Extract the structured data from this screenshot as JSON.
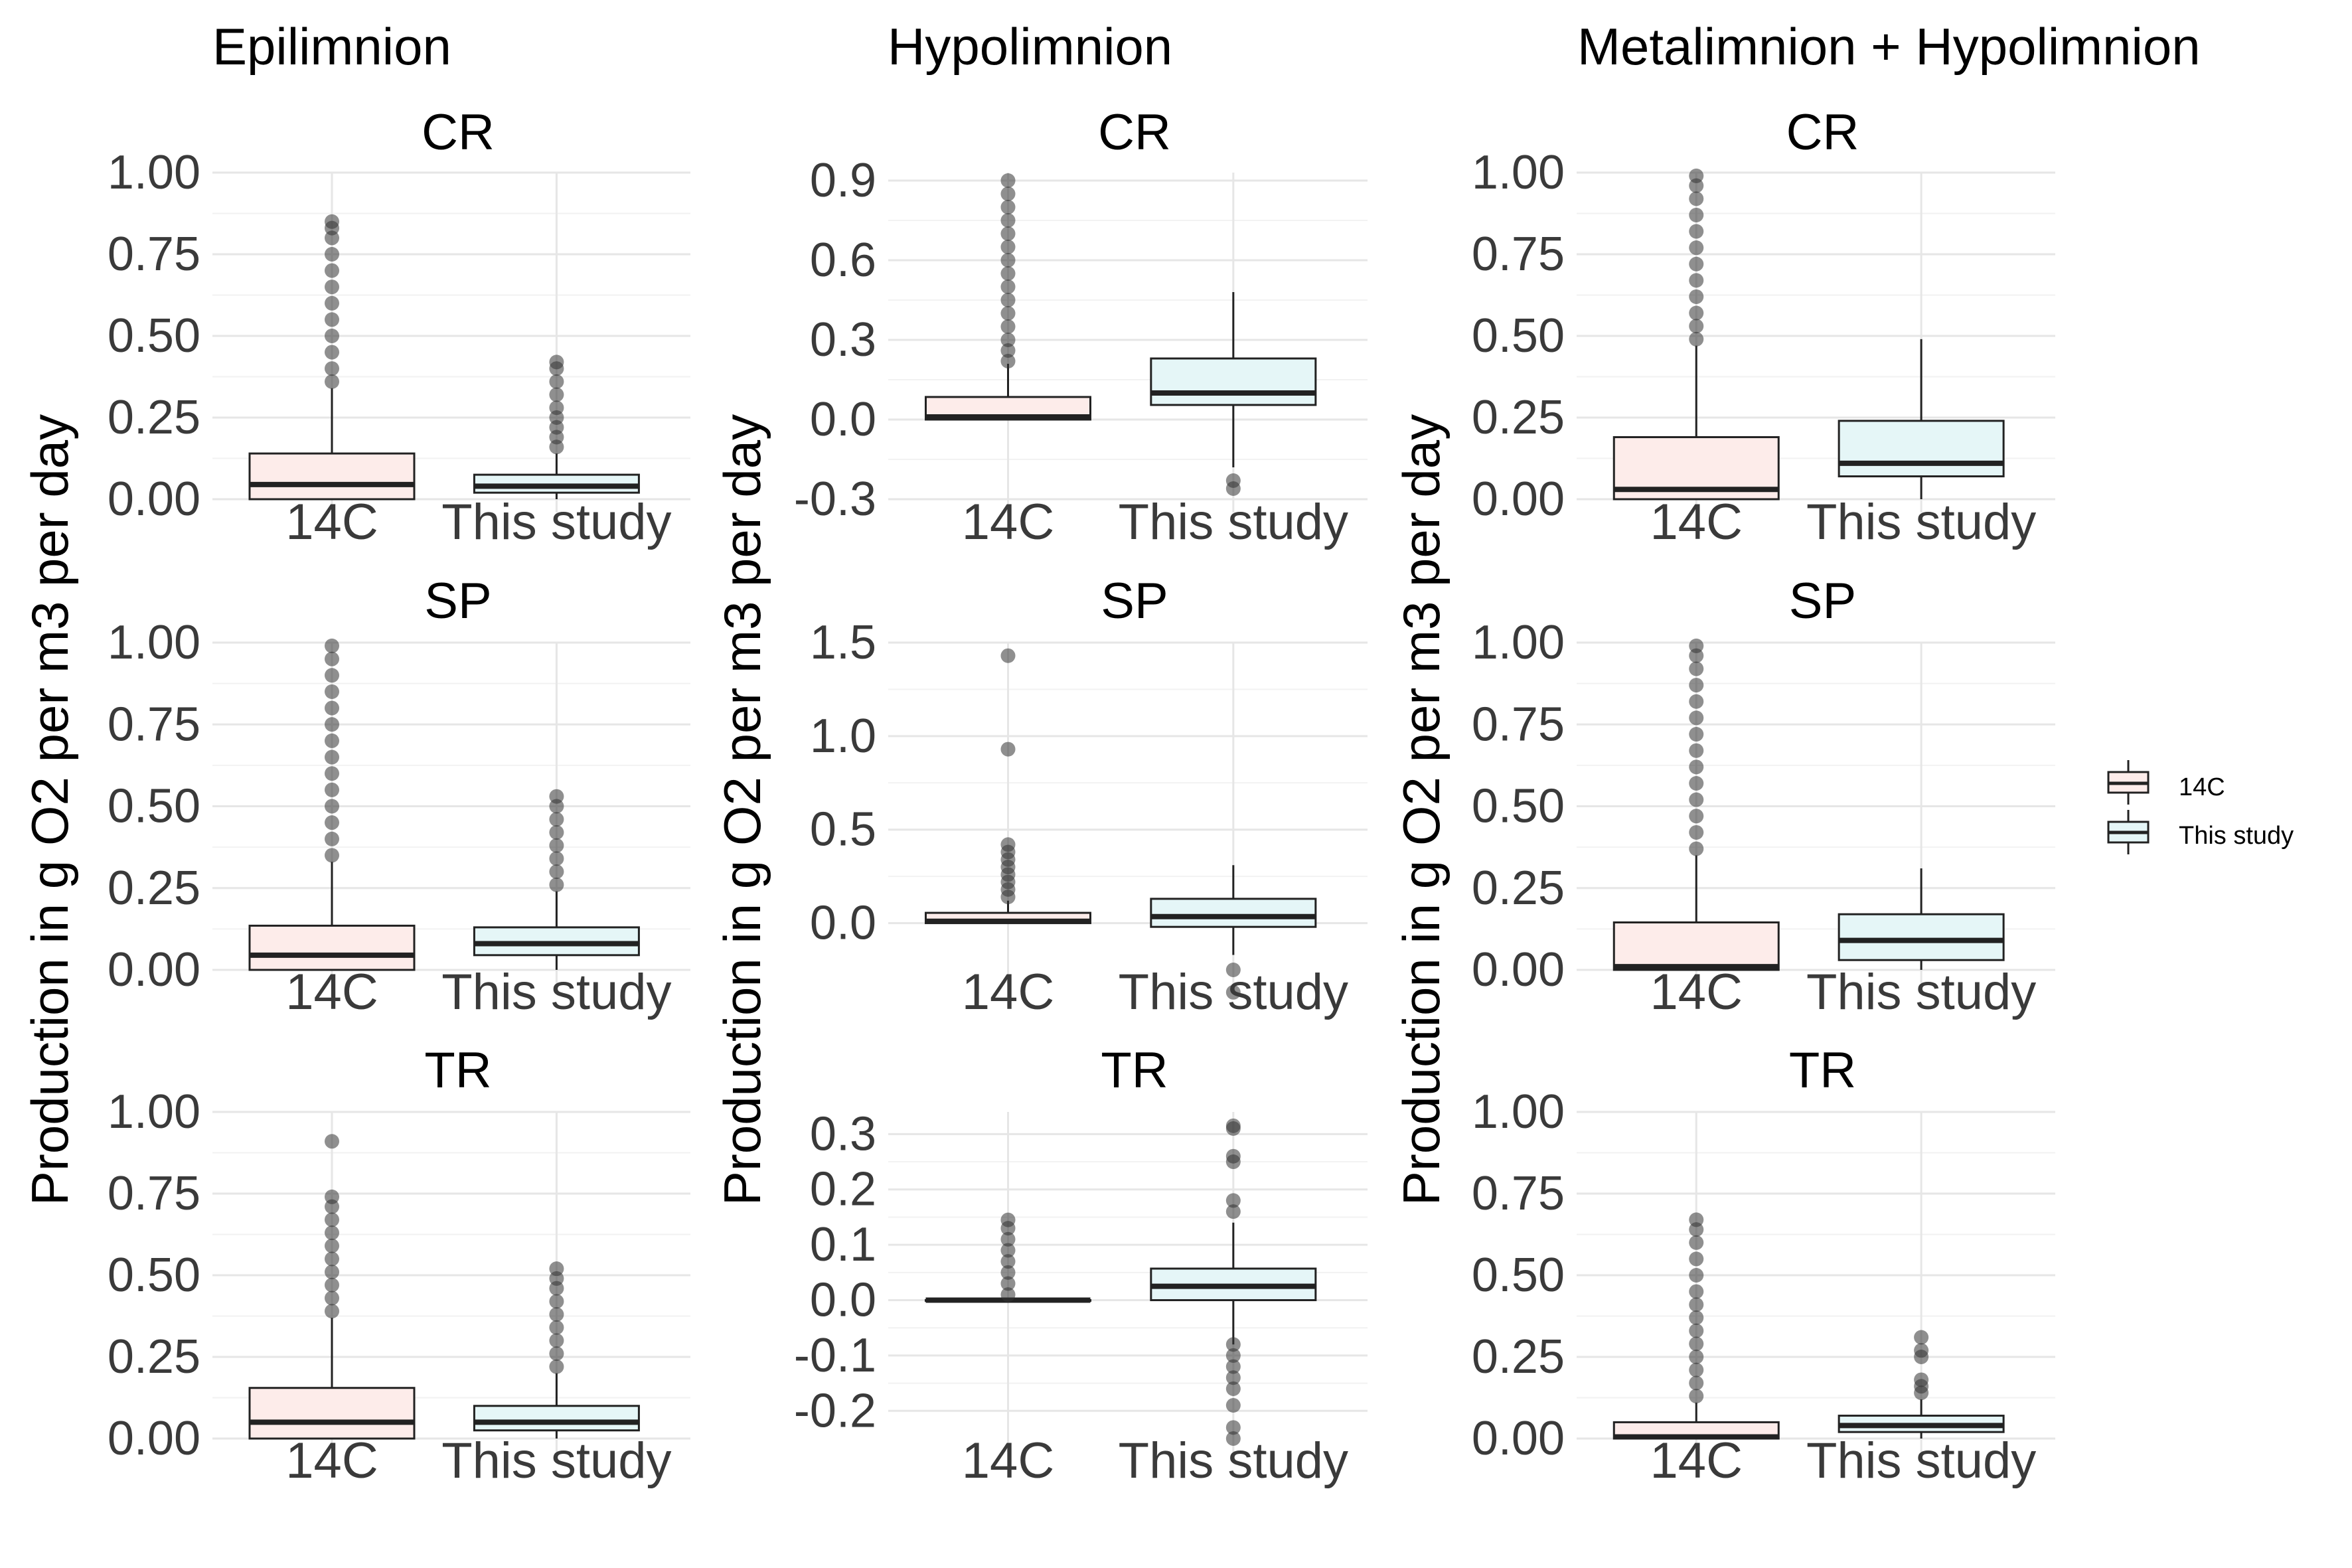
{
  "column_titles": [
    "Epilimnion",
    "Hypolimnion",
    "Metalimnion + Hypolimnion"
  ],
  "ylabel": "Production in g O2 per m3 per day",
  "legend": {
    "entries": [
      {
        "label": "14C",
        "fill": "#fdecea"
      },
      {
        "label": "This study",
        "fill": "#e5f6f7"
      }
    ]
  },
  "colors": {
    "box_14C": "#fdecea",
    "box_this_study": "#e5f6f7",
    "outline": "#222222",
    "grid_major": "#e6e6e6",
    "grid_minor": "#f2f2f2",
    "outlier": "#333333"
  },
  "chart_data": [
    {
      "type": "box",
      "column": "Epilimnion",
      "title": "CR",
      "ylim": [
        0,
        1.0
      ],
      "yticks": [
        0,
        0.25,
        0.5,
        0.75,
        1.0
      ],
      "ytick_labels": [
        "0.00",
        "0.25",
        "0.50",
        "0.75",
        "1.00"
      ],
      "categories": [
        "14C",
        "This study"
      ],
      "boxes": [
        {
          "q1": 0.0,
          "median": 0.045,
          "q3": 0.14,
          "whisker_low": 0.0,
          "whisker_high": 0.34,
          "outliers": [
            0.36,
            0.4,
            0.45,
            0.5,
            0.55,
            0.6,
            0.65,
            0.7,
            0.75,
            0.8,
            0.83,
            0.85
          ]
        },
        {
          "q1": 0.02,
          "median": 0.04,
          "q3": 0.075,
          "whisker_low": 0.0,
          "whisker_high": 0.14,
          "outliers": [
            0.16,
            0.19,
            0.22,
            0.25,
            0.28,
            0.32,
            0.36,
            0.4,
            0.42
          ]
        }
      ]
    },
    {
      "type": "box",
      "column": "Hypolimnion",
      "title": "CR",
      "ylim": [
        -0.3,
        0.93
      ],
      "yticks": [
        -0.3,
        0,
        0.3,
        0.6,
        0.9
      ],
      "ytick_labels": [
        "-0.3",
        "0.0",
        "0.3",
        "0.6",
        "0.9"
      ],
      "categories": [
        "14C",
        "This study"
      ],
      "boxes": [
        {
          "q1": 0.0,
          "median": 0.01,
          "q3": 0.085,
          "whisker_low": 0.0,
          "whisker_high": 0.21,
          "outliers": [
            0.22,
            0.26,
            0.3,
            0.35,
            0.4,
            0.45,
            0.5,
            0.55,
            0.6,
            0.65,
            0.7,
            0.75,
            0.8,
            0.85,
            0.9
          ]
        },
        {
          "q1": 0.055,
          "median": 0.1,
          "q3": 0.23,
          "whisker_low": -0.18,
          "whisker_high": 0.48,
          "outliers": [
            -0.23,
            -0.26
          ]
        }
      ]
    },
    {
      "type": "box",
      "column": "Metalimnion + Hypolimnion",
      "title": "CR",
      "ylim": [
        0,
        1.0
      ],
      "yticks": [
        0,
        0.25,
        0.5,
        0.75,
        1.0
      ],
      "ytick_labels": [
        "0.00",
        "0.25",
        "0.50",
        "0.75",
        "1.00"
      ],
      "categories": [
        "14C",
        "This study"
      ],
      "boxes": [
        {
          "q1": 0.0,
          "median": 0.03,
          "q3": 0.19,
          "whisker_low": 0.0,
          "whisker_high": 0.47,
          "outliers": [
            0.49,
            0.53,
            0.57,
            0.62,
            0.67,
            0.72,
            0.77,
            0.82,
            0.87,
            0.92,
            0.96,
            0.99
          ]
        },
        {
          "q1": 0.07,
          "median": 0.11,
          "q3": 0.24,
          "whisker_low": 0.0,
          "whisker_high": 0.49,
          "outliers": []
        }
      ]
    },
    {
      "type": "box",
      "column": "Epilimnion",
      "title": "SP",
      "ylim": [
        0,
        1.0
      ],
      "yticks": [
        0,
        0.25,
        0.5,
        0.75,
        1.0
      ],
      "ytick_labels": [
        "0.00",
        "0.25",
        "0.50",
        "0.75",
        "1.00"
      ],
      "categories": [
        "14C",
        "This study"
      ],
      "boxes": [
        {
          "q1": 0.0,
          "median": 0.045,
          "q3": 0.135,
          "whisker_low": 0.0,
          "whisker_high": 0.33,
          "outliers": [
            0.35,
            0.4,
            0.45,
            0.5,
            0.55,
            0.6,
            0.65,
            0.7,
            0.75,
            0.8,
            0.85,
            0.9,
            0.95,
            0.99
          ]
        },
        {
          "q1": 0.045,
          "median": 0.08,
          "q3": 0.13,
          "whisker_low": 0.0,
          "whisker_high": 0.24,
          "outliers": [
            0.26,
            0.3,
            0.34,
            0.38,
            0.42,
            0.46,
            0.5,
            0.53
          ]
        }
      ]
    },
    {
      "type": "box",
      "column": "Hypolimnion",
      "title": "SP",
      "ylim": [
        -0.25,
        1.5
      ],
      "yticks": [
        0,
        0.5,
        1.0,
        1.5
      ],
      "ytick_labels": [
        "0.0",
        "0.5",
        "1.0",
        "1.5"
      ],
      "categories": [
        "14C",
        "This study"
      ],
      "boxes": [
        {
          "q1": 0.0,
          "median": 0.01,
          "q3": 0.055,
          "whisker_low": 0.0,
          "whisker_high": 0.12,
          "outliers": [
            0.14,
            0.18,
            0.22,
            0.26,
            0.3,
            0.34,
            0.38,
            0.42,
            0.93,
            1.43
          ]
        },
        {
          "q1": -0.02,
          "median": 0.035,
          "q3": 0.13,
          "whisker_low": -0.17,
          "whisker_high": 0.31,
          "outliers": [
            -0.25,
            -0.37
          ]
        }
      ]
    },
    {
      "type": "box",
      "column": "Metalimnion + Hypolimnion",
      "title": "SP",
      "ylim": [
        0,
        1.0
      ],
      "yticks": [
        0,
        0.25,
        0.5,
        0.75,
        1.0
      ],
      "ytick_labels": [
        "0.00",
        "0.25",
        "0.50",
        "0.75",
        "1.00"
      ],
      "categories": [
        "14C",
        "This study"
      ],
      "boxes": [
        {
          "q1": 0.0,
          "median": 0.01,
          "q3": 0.145,
          "whisker_low": 0.0,
          "whisker_high": 0.35,
          "outliers": [
            0.37,
            0.42,
            0.47,
            0.52,
            0.57,
            0.62,
            0.67,
            0.72,
            0.77,
            0.82,
            0.87,
            0.92,
            0.96,
            0.99
          ]
        },
        {
          "q1": 0.03,
          "median": 0.09,
          "q3": 0.17,
          "whisker_low": 0.0,
          "whisker_high": 0.31,
          "outliers": []
        }
      ]
    },
    {
      "type": "box",
      "column": "Epilimnion",
      "title": "TR",
      "ylim": [
        0,
        1.0
      ],
      "yticks": [
        0,
        0.25,
        0.5,
        0.75,
        1.0
      ],
      "ytick_labels": [
        "0.00",
        "0.25",
        "0.50",
        "0.75",
        "1.00"
      ],
      "categories": [
        "14C",
        "This study"
      ],
      "boxes": [
        {
          "q1": 0.0,
          "median": 0.05,
          "q3": 0.155,
          "whisker_low": 0.0,
          "whisker_high": 0.37,
          "outliers": [
            0.39,
            0.43,
            0.47,
            0.51,
            0.55,
            0.59,
            0.63,
            0.67,
            0.71,
            0.74,
            0.91
          ]
        },
        {
          "q1": 0.025,
          "median": 0.05,
          "q3": 0.1,
          "whisker_low": 0.0,
          "whisker_high": 0.2,
          "outliers": [
            0.22,
            0.26,
            0.3,
            0.34,
            0.38,
            0.42,
            0.46,
            0.49,
            0.52
          ]
        }
      ]
    },
    {
      "type": "box",
      "column": "Hypolimnion",
      "title": "TR",
      "ylim": [
        -0.25,
        0.34
      ],
      "yticks": [
        -0.2,
        -0.1,
        0,
        0.1,
        0.2,
        0.3
      ],
      "ytick_labels": [
        "-0.2",
        "-0.1",
        "0.0",
        "0.1",
        "0.2",
        "0.3"
      ],
      "categories": [
        "14C",
        "This study"
      ],
      "boxes": [
        {
          "q1": 0.0,
          "median": 0.0,
          "q3": 0.0,
          "whisker_low": 0.0,
          "whisker_high": 0.0,
          "outliers": [
            0.01,
            0.03,
            0.05,
            0.07,
            0.09,
            0.11,
            0.13,
            0.145
          ]
        },
        {
          "q1": 0.0,
          "median": 0.025,
          "q3": 0.057,
          "whisker_low": -0.08,
          "whisker_high": 0.14,
          "outliers": [
            -0.08,
            -0.1,
            -0.12,
            -0.14,
            -0.16,
            -0.19,
            -0.23,
            -0.25,
            0.16,
            0.18,
            0.25,
            0.26,
            0.31,
            0.315
          ]
        }
      ]
    },
    {
      "type": "box",
      "column": "Metalimnion + Hypolimnion",
      "title": "TR",
      "ylim": [
        0,
        1.0
      ],
      "yticks": [
        0,
        0.25,
        0.5,
        0.75,
        1.0
      ],
      "ytick_labels": [
        "0.00",
        "0.25",
        "0.50",
        "0.75",
        "1.00"
      ],
      "categories": [
        "14C",
        "This study"
      ],
      "boxes": [
        {
          "q1": 0.0,
          "median": 0.005,
          "q3": 0.05,
          "whisker_low": 0.0,
          "whisker_high": 0.11,
          "outliers": [
            0.13,
            0.17,
            0.21,
            0.25,
            0.29,
            0.33,
            0.37,
            0.41,
            0.45,
            0.5,
            0.55,
            0.6,
            0.64,
            0.67
          ]
        },
        {
          "q1": 0.02,
          "median": 0.04,
          "q3": 0.07,
          "whisker_low": 0.0,
          "whisker_high": 0.12,
          "outliers": [
            0.14,
            0.16,
            0.18,
            0.25,
            0.27,
            0.31
          ]
        }
      ]
    }
  ]
}
